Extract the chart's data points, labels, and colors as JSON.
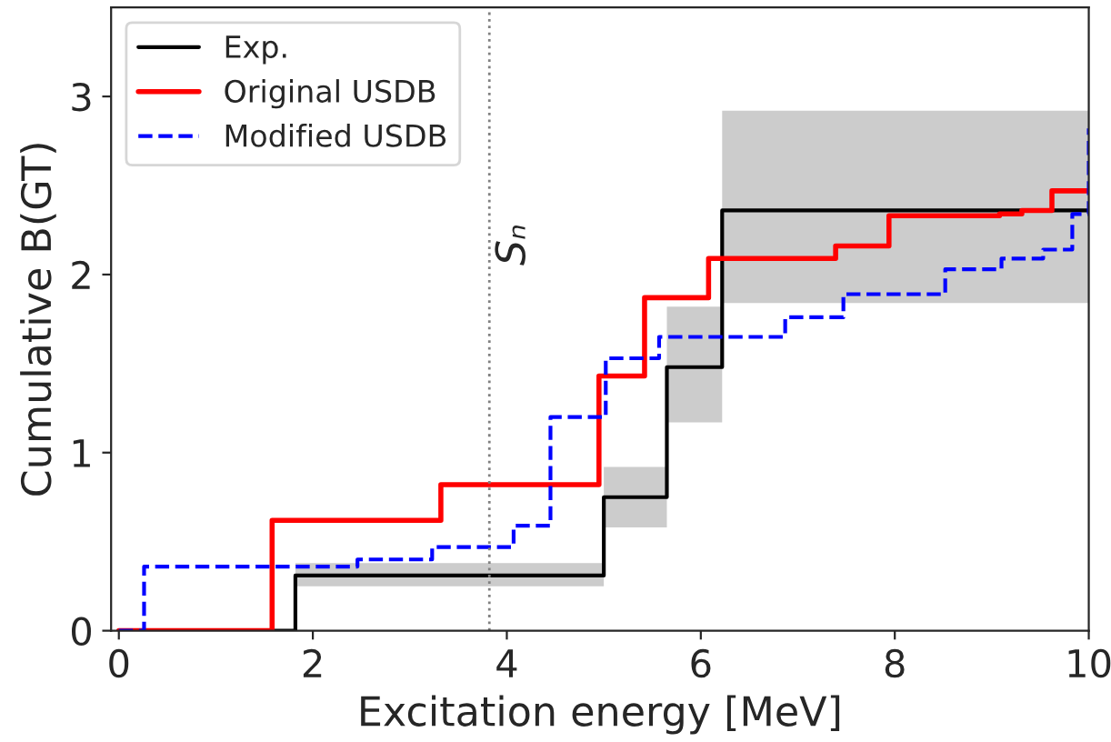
{
  "chart_data": {
    "type": "step",
    "xlabel": "Excitation energy [MeV]",
    "ylabel": "Cumulative B(GT)",
    "xlim": [
      -0.08,
      10
    ],
    "ylim": [
      0,
      3.5
    ],
    "xticks": [
      0,
      2,
      4,
      6,
      8,
      10
    ],
    "yticks": [
      0,
      1,
      2,
      3
    ],
    "grid": false,
    "legend": "top left",
    "series": [
      {
        "name": "Exp.",
        "color": "#000000",
        "line_style": "solid",
        "x": [
          0,
          1.82,
          5.0,
          5.65,
          6.22,
          10
        ],
        "values": [
          0,
          0.31,
          0.75,
          1.48,
          2.36,
          2.36
        ],
        "lower": [
          0,
          0.25,
          0.58,
          1.17,
          1.84,
          1.84
        ],
        "upper": [
          0,
          0.38,
          0.92,
          1.82,
          2.92,
          2.92
        ]
      },
      {
        "name": "Original USDB",
        "color": "#ff0000",
        "line_style": "solid",
        "x": [
          0,
          1.58,
          3.32,
          4.95,
          5.42,
          6.08,
          7.39,
          7.94,
          9.08,
          9.31,
          9.62,
          10
        ],
        "values": [
          0,
          0.62,
          0.82,
          1.43,
          1.87,
          2.09,
          2.16,
          2.33,
          2.34,
          2.36,
          2.47,
          2.47
        ]
      },
      {
        "name": "Modified USDB",
        "color": "#0000ff",
        "line_style": "dashed",
        "x": [
          0,
          0.26,
          2.46,
          3.23,
          4.07,
          4.45,
          5.02,
          5.57,
          6.87,
          7.47,
          8.52,
          9.1,
          9.53,
          9.83,
          10
        ],
        "values": [
          0,
          0.36,
          0.4,
          0.47,
          0.59,
          1.2,
          1.53,
          1.65,
          1.76,
          1.89,
          2.03,
          2.09,
          2.14,
          2.34,
          2.82
        ]
      }
    ],
    "ref_lines": [
      {
        "axis": "x",
        "value": 3.82,
        "label": "Sₙ",
        "color": "#808080",
        "line_style": "dotted"
      }
    ]
  }
}
